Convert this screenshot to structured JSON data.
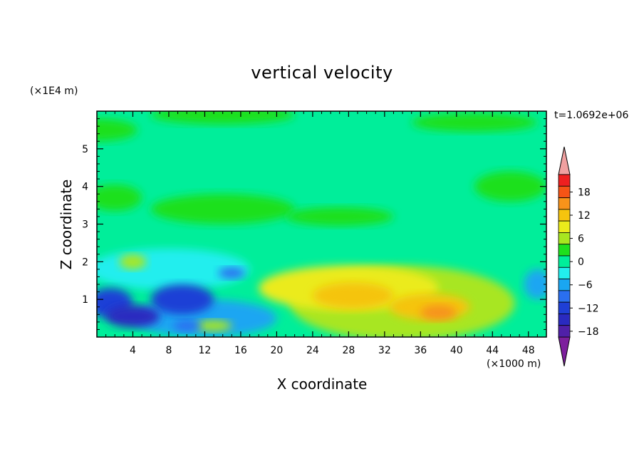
{
  "chart_data": {
    "type": "heatmap",
    "title": "vertical velocity",
    "xlabel": "X coordinate",
    "ylabel": "Z coordinate",
    "x_unit_label": "(×1000 m)",
    "y_unit_label": "(×1E4 m)",
    "time_label": "t=1.0692e+06",
    "xlim": [
      0,
      50
    ],
    "ylim": [
      0,
      6
    ],
    "x_ticks": [
      "4",
      "8",
      "12",
      "16",
      "20",
      "24",
      "28",
      "32",
      "36",
      "40",
      "44",
      "48"
    ],
    "y_ticks": [
      "1",
      "2",
      "3",
      "4",
      "5"
    ],
    "colorbar": {
      "tick_labels": [
        "18",
        "12",
        "6",
        "0",
        "−6",
        "−12",
        "−18"
      ],
      "levels": [
        {
          "value": -21,
          "color": "#7d1f9d"
        },
        {
          "value": -18,
          "color": "#5020a8"
        },
        {
          "value": -15,
          "color": "#2a2ac0"
        },
        {
          "value": -12,
          "color": "#1f3fd6"
        },
        {
          "value": -9,
          "color": "#2a6ff0"
        },
        {
          "value": -6,
          "color": "#1aa6f2"
        },
        {
          "value": -3,
          "color": "#22eeee"
        },
        {
          "value": 0,
          "color": "#00ee9a"
        },
        {
          "value": 3,
          "color": "#1ee01e"
        },
        {
          "value": 6,
          "color": "#a8e620"
        },
        {
          "value": 9,
          "color": "#ebeb1b"
        },
        {
          "value": 12,
          "color": "#f5c40e"
        },
        {
          "value": 15,
          "color": "#f7931a"
        },
        {
          "value": 18,
          "color": "#f55416"
        },
        {
          "value": 21,
          "color": "#ee2020"
        },
        {
          "value": 24,
          "color": "#f0a0a0"
        }
      ]
    },
    "features": [
      {
        "x": 0,
        "z": 5.5,
        "value": 1.5,
        "width": 9,
        "height": 0.6
      },
      {
        "x": 14,
        "z": 5.9,
        "value": 2,
        "width": 16,
        "height": 0.5
      },
      {
        "x": 42,
        "z": 5.7,
        "value": 2,
        "width": 14,
        "height": 0.5
      },
      {
        "x": 46,
        "z": 4.0,
        "value": 2,
        "width": 8,
        "height": 0.8
      },
      {
        "x": 2,
        "z": 3.7,
        "value": 1.5,
        "width": 6,
        "height": 0.7
      },
      {
        "x": 14,
        "z": 3.4,
        "value": 1.5,
        "width": 16,
        "height": 0.8
      },
      {
        "x": 27,
        "z": 3.2,
        "value": 1.5,
        "width": 12,
        "height": 0.5
      },
      {
        "x": 4,
        "z": 2.0,
        "value": 7,
        "width": 3,
        "height": 0.4
      },
      {
        "x": 28,
        "z": 1.3,
        "value": 9,
        "width": 20,
        "height": 1.2
      },
      {
        "x": 28.5,
        "z": 1.1,
        "value": 11,
        "width": 9,
        "height": 0.7
      },
      {
        "x": 38,
        "z": 0.65,
        "value": 15,
        "width": 4,
        "height": 0.4
      },
      {
        "x": 37,
        "z": 0.8,
        "value": 12,
        "width": 9,
        "height": 0.7
      },
      {
        "x": 34,
        "z": 0.9,
        "value": 6,
        "width": 25,
        "height": 2.0
      },
      {
        "x": 13,
        "z": 0.3,
        "value": 6,
        "width": 4,
        "height": 0.3
      },
      {
        "x": 4,
        "z": 0.55,
        "value": -15,
        "width": 6,
        "height": 0.6
      },
      {
        "x": 1.5,
        "z": 0.9,
        "value": -11,
        "width": 5,
        "height": 0.8
      },
      {
        "x": 9.5,
        "z": 1.0,
        "value": -12,
        "width": 7,
        "height": 0.8
      },
      {
        "x": 10,
        "z": 0.3,
        "value": -9,
        "width": 3,
        "height": 0.3
      },
      {
        "x": 15,
        "z": 1.7,
        "value": -10,
        "width": 3,
        "height": 0.3
      },
      {
        "x": 12,
        "z": 0.5,
        "value": -5,
        "width": 16,
        "height": 1.0
      },
      {
        "x": 49,
        "z": 1.4,
        "value": -5,
        "width": 3,
        "height": 0.8
      },
      {
        "x": 8,
        "z": 1.8,
        "value": -3,
        "width": 18,
        "height": 1.1
      }
    ]
  }
}
